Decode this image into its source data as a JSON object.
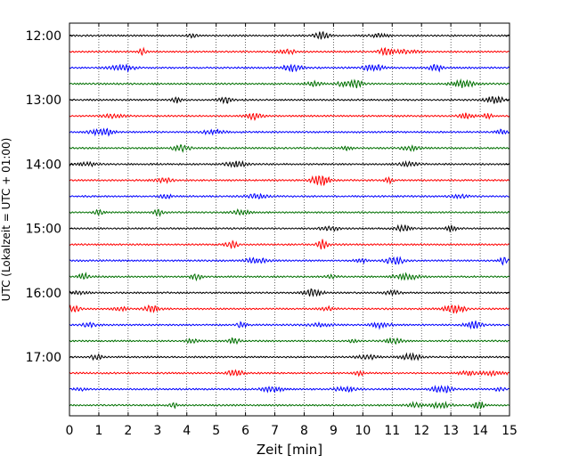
{
  "chart_data": {
    "type": "line",
    "title": "",
    "xlabel": "Zeit  [min]",
    "ylabel": "UTC (Lokalzeit = UTC + 01:00)",
    "xlim": [
      0,
      15
    ],
    "x_ticks": [
      0,
      1,
      2,
      3,
      4,
      5,
      6,
      7,
      8,
      9,
      10,
      11,
      12,
      13,
      14,
      15
    ],
    "grid": "vertical dotted",
    "y_ticks": [
      "12:00",
      "13:00",
      "14:00",
      "15:00",
      "16:00",
      "17:00"
    ],
    "trace_interval_min": 15,
    "start_time": "12:00",
    "trace_count": 24,
    "trace_colors": [
      "#000000",
      "#ff0000",
      "#0000ff",
      "#007000"
    ]
  }
}
